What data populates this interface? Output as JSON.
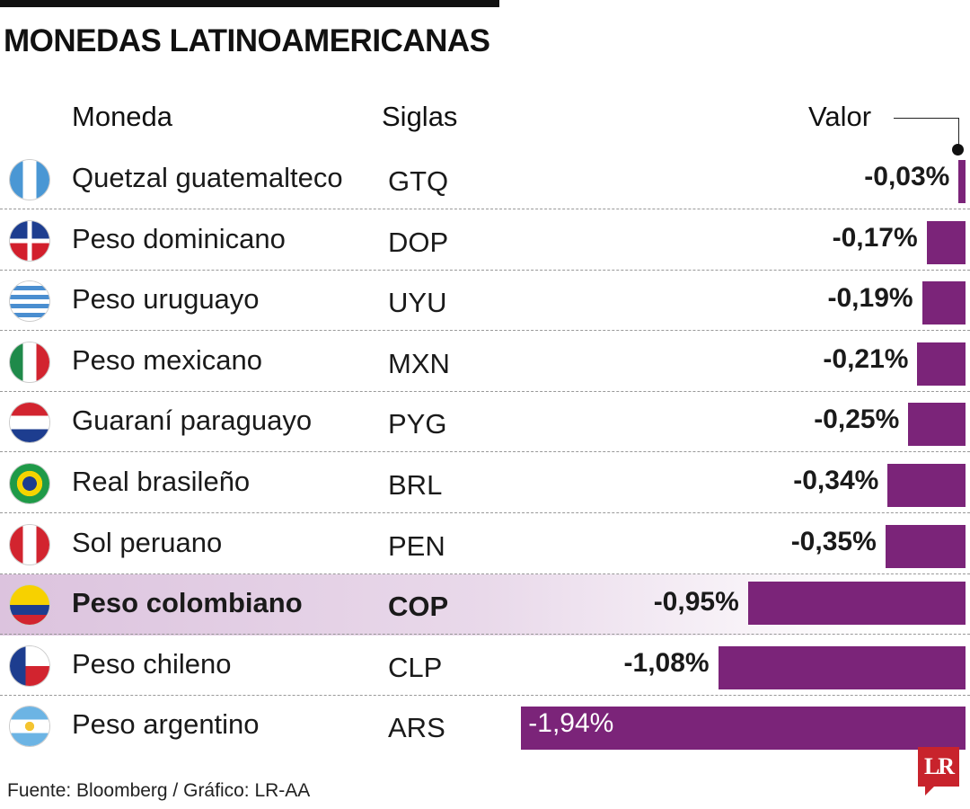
{
  "title": "MONEDAS LATINOAMERICANAS",
  "headers": {
    "currency": "Moneda",
    "code": "Siglas",
    "value": "Valor"
  },
  "colors": {
    "bar": "#7b2479",
    "highlight": "#dcc3de",
    "logo": "#c8232c"
  },
  "chart_data": {
    "type": "bar",
    "orientation": "horizontal",
    "value_unit": "%",
    "highlighted": "COP",
    "categories": [
      "Quetzal guatemalteco",
      "Peso dominicano",
      "Peso uruguayo",
      "Peso mexicano",
      "Guaraní paraguayo",
      "Real brasileño",
      "Sol peruano",
      "Peso colombiano",
      "Peso chileno",
      "Peso argentino"
    ],
    "rows": [
      {
        "name": "Quetzal guatemalteco",
        "code": "GTQ",
        "value": -0.03,
        "label": "-0,03%",
        "flag": "guatemala-flag-icon"
      },
      {
        "name": "Peso dominicano",
        "code": "DOP",
        "value": -0.17,
        "label": "-0,17%",
        "flag": "dominican-flag-icon"
      },
      {
        "name": "Peso uruguayo",
        "code": "UYU",
        "value": -0.19,
        "label": "-0,19%",
        "flag": "uruguay-flag-icon"
      },
      {
        "name": "Peso mexicano",
        "code": "MXN",
        "value": -0.21,
        "label": "-0,21%",
        "flag": "mexico-flag-icon"
      },
      {
        "name": "Guaraní paraguayo",
        "code": "PYG",
        "value": -0.25,
        "label": "-0,25%",
        "flag": "paraguay-flag-icon"
      },
      {
        "name": "Real brasileño",
        "code": "BRL",
        "value": -0.34,
        "label": "-0,34%",
        "flag": "brazil-flag-icon"
      },
      {
        "name": "Sol peruano",
        "code": "PEN",
        "value": -0.35,
        "label": "-0,35%",
        "flag": "peru-flag-icon"
      },
      {
        "name": "Peso colombiano",
        "code": "COP",
        "value": -0.95,
        "label": "-0,95%",
        "flag": "colombia-flag-icon"
      },
      {
        "name": "Peso chileno",
        "code": "CLP",
        "value": -1.08,
        "label": "-1,08%",
        "flag": "chile-flag-icon"
      },
      {
        "name": "Peso argentino",
        "code": "ARS",
        "value": -1.94,
        "label": "-1,94%",
        "flag": "argentina-flag-icon"
      }
    ]
  },
  "source": "Fuente: Bloomberg / Gráfico: LR-AA",
  "logo": "LR"
}
